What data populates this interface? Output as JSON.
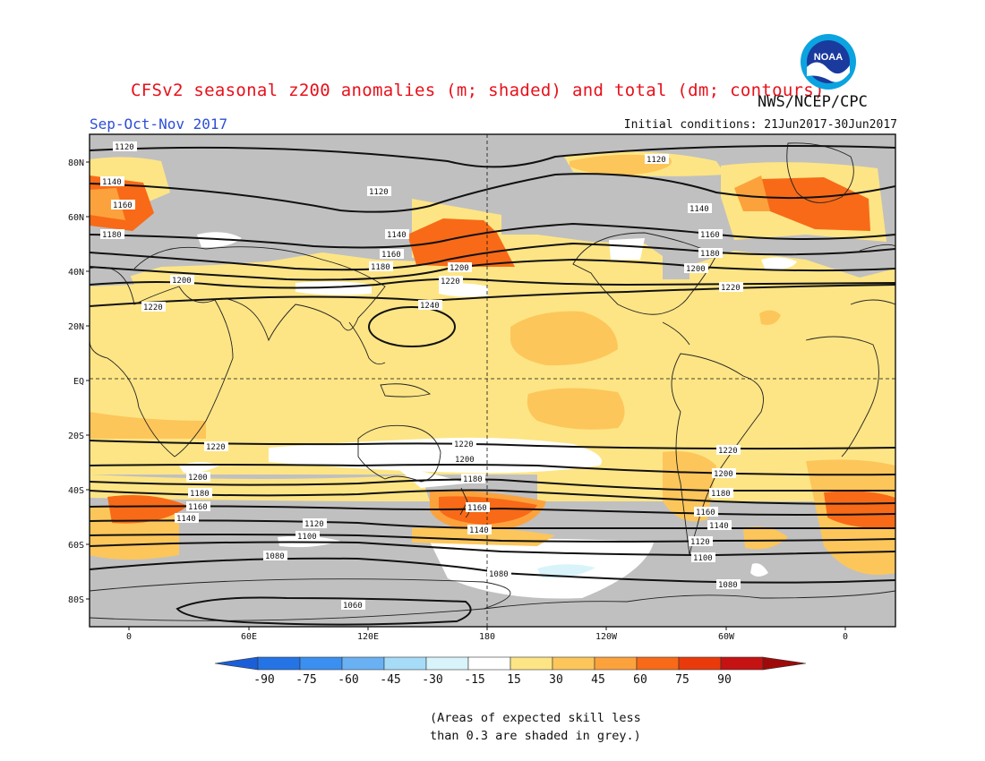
{
  "header": {
    "title": "CFSv2 seasonal z200 anomalies (m; shaded) and total (dm; contours)",
    "agency": "NWS/NCEP/CPC",
    "season": "Sep-Oct-Nov 2017",
    "initial_conditions": "Initial conditions: 21Jun2017-30Jun2017",
    "logo_text": "NOAA"
  },
  "map": {
    "lat_ticks": [
      "80N",
      "60N",
      "40N",
      "20N",
      "EQ",
      "20S",
      "40S",
      "60S",
      "80S"
    ],
    "lon_ticks": [
      "0",
      "60E",
      "120E",
      "180",
      "120W",
      "60W",
      "0"
    ],
    "contour_labels": [
      "1120",
      "1140",
      "1160",
      "1180",
      "1200",
      "1220",
      "1240",
      "1200",
      "1180",
      "1160",
      "1140",
      "1120",
      "1100",
      "1080",
      "1060"
    ]
  },
  "colorbar": {
    "labels": [
      "-90",
      "-75",
      "-60",
      "-45",
      "-30",
      "-15",
      "15",
      "30",
      "45",
      "60",
      "75",
      "90"
    ],
    "colors": [
      "#1a5fd8",
      "#2474e6",
      "#3b8ff0",
      "#6ab1f4",
      "#a6dcf8",
      "#d8f4fa",
      "#ffffff",
      "#fde585",
      "#fdc65a",
      "#fca23c",
      "#f86a17",
      "#ea3a0c",
      "#c51212",
      "#9e0a0a"
    ]
  },
  "note": {
    "line1": "(Areas of expected skill less",
    "line2": "than 0.3 are shaded in grey.)"
  }
}
